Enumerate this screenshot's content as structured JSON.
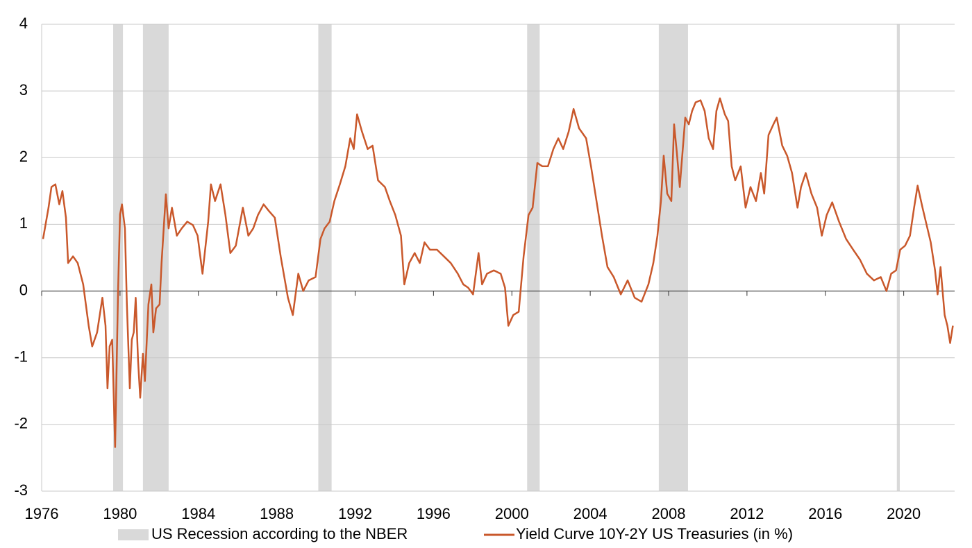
{
  "chart_data": {
    "type": "line",
    "xlim": [
      1976,
      2022.6
    ],
    "xticks": [
      1976,
      1980,
      1984,
      1988,
      1992,
      1996,
      2000,
      2004,
      2008,
      2012,
      2016,
      2020
    ],
    "ylim": [
      -3,
      4
    ],
    "yticks": [
      -3,
      -2,
      -1,
      0,
      1,
      2,
      3,
      4
    ],
    "grid": true,
    "legend": "bottom",
    "recessions": {
      "name": "US Recession according to the NBER",
      "color": "#d9d9d9",
      "spans": [
        [
          1979.65,
          1980.15
        ],
        [
          1981.17,
          1982.48
        ],
        [
          1990.12,
          1990.8
        ],
        [
          2000.78,
          2001.42
        ],
        [
          2007.5,
          2008.99
        ],
        [
          2019.65,
          2019.8
        ]
      ]
    },
    "series": [
      {
        "name": "Yield Curve 10Y-2Y US Treasuries (in %)",
        "color": "#c9582b",
        "x": [
          1976.07,
          1976.35,
          1976.5,
          1976.7,
          1976.9,
          1977.06,
          1977.24,
          1977.35,
          1977.6,
          1977.84,
          1978.12,
          1978.4,
          1978.58,
          1978.83,
          1979.1,
          1979.26,
          1979.36,
          1979.47,
          1979.6,
          1979.75,
          1979.9,
          1980.0,
          1980.1,
          1980.25,
          1980.35,
          1980.5,
          1980.6,
          1980.7,
          1980.8,
          1980.92,
          1981.03,
          1981.17,
          1981.27,
          1981.45,
          1981.6,
          1981.7,
          1981.84,
          1982.02,
          1982.12,
          1982.23,
          1982.34,
          1982.48,
          1982.65,
          1982.9,
          1983.15,
          1983.43,
          1983.72,
          1983.96,
          1984.21,
          1984.5,
          1984.64,
          1984.85,
          1985.13,
          1985.38,
          1985.63,
          1985.91,
          1986.27,
          1986.55,
          1986.8,
          1987.04,
          1987.33,
          1987.6,
          1987.9,
          1988.2,
          1988.57,
          1988.82,
          1989.1,
          1989.35,
          1989.63,
          1989.98,
          1990.23,
          1990.44,
          1990.7,
          1990.94,
          1991.22,
          1991.5,
          1991.75,
          1991.93,
          1992.1,
          1992.35,
          1992.64,
          1992.89,
          1993.17,
          1993.52,
          1993.77,
          1994.05,
          1994.34,
          1994.51,
          1994.76,
          1995.04,
          1995.3,
          1995.54,
          1995.82,
          1996.18,
          1996.53,
          1996.88,
          1997.24,
          1997.52,
          1997.77,
          1998.02,
          1998.3,
          1998.48,
          1998.73,
          1999.08,
          1999.43,
          1999.65,
          1999.82,
          2000.07,
          2000.35,
          2000.6,
          2000.85,
          2001.06,
          2001.3,
          2001.56,
          2001.84,
          2002.12,
          2002.37,
          2002.62,
          2002.9,
          2003.15,
          2003.43,
          2003.79,
          2004.04,
          2004.32,
          2004.6,
          2004.88,
          2005.2,
          2005.56,
          2005.91,
          2006.27,
          2006.62,
          2006.97,
          2007.22,
          2007.43,
          2007.61,
          2007.75,
          2007.93,
          2008.14,
          2008.28,
          2008.42,
          2008.57,
          2008.71,
          2008.85,
          2009.03,
          2009.2,
          2009.38,
          2009.63,
          2009.84,
          2010.05,
          2010.27,
          2010.44,
          2010.62,
          2010.87,
          2011.04,
          2011.22,
          2011.4,
          2011.68,
          2011.93,
          2012.18,
          2012.46,
          2012.71,
          2012.88,
          2013.1,
          2013.35,
          2013.52,
          2013.8,
          2014.05,
          2014.3,
          2014.58,
          2014.76,
          2015.0,
          2015.29,
          2015.58,
          2015.82,
          2016.07,
          2016.35,
          2016.7,
          2017.06,
          2017.42,
          2017.77,
          2018.12,
          2018.48,
          2018.83,
          2019.12,
          2019.36,
          2019.61,
          2019.82,
          2020.07,
          2020.32,
          2020.53,
          2020.71,
          2020.96,
          2021.17,
          2021.38,
          2021.6,
          2021.73,
          2021.88,
          2022.09,
          2022.23,
          2022.37,
          2022.51
        ],
        "values": [
          0.78,
          1.25,
          1.56,
          1.6,
          1.3,
          1.5,
          1.1,
          0.42,
          0.52,
          0.42,
          0.1,
          -0.52,
          -0.83,
          -0.62,
          -0.1,
          -0.52,
          -1.46,
          -0.83,
          -0.73,
          -2.34,
          0,
          1.15,
          1.3,
          0.94,
          -0.2,
          -1.46,
          -0.73,
          -0.62,
          -0.1,
          -1.04,
          -1.6,
          -0.94,
          -1.35,
          -0.2,
          0.1,
          -0.62,
          -0.26,
          -0.2,
          0.42,
          0.94,
          1.45,
          0.94,
          1.25,
          0.83,
          0.94,
          1.04,
          0.99,
          0.83,
          0.26,
          1.04,
          1.6,
          1.35,
          1.6,
          1.14,
          0.57,
          0.68,
          1.25,
          0.83,
          0.94,
          1.14,
          1.3,
          1.2,
          1.1,
          0.52,
          -0.1,
          -0.36,
          0.26,
          0,
          0.16,
          0.21,
          0.78,
          0.94,
          1.04,
          1.35,
          1.6,
          1.87,
          2.29,
          2.13,
          2.65,
          2.39,
          2.13,
          2.18,
          1.66,
          1.56,
          1.35,
          1.14,
          0.83,
          0.1,
          0.42,
          0.57,
          0.42,
          0.73,
          0.62,
          0.62,
          0.52,
          0.42,
          0.26,
          0.1,
          0.05,
          -0.05,
          0.57,
          0.1,
          0.26,
          0.31,
          0.26,
          0.05,
          -0.52,
          -0.36,
          -0.31,
          0.52,
          1.14,
          1.25,
          1.92,
          1.87,
          1.87,
          2.13,
          2.29,
          2.13,
          2.39,
          2.73,
          2.44,
          2.29,
          1.87,
          1.35,
          0.83,
          0.36,
          0.21,
          -0.05,
          0.16,
          -0.1,
          -0.16,
          0.1,
          0.42,
          0.83,
          1.35,
          2.03,
          1.46,
          1.35,
          2.5,
          2.08,
          1.56,
          2.08,
          2.6,
          2.5,
          2.7,
          2.83,
          2.86,
          2.7,
          2.29,
          2.13,
          2.7,
          2.89,
          2.65,
          2.55,
          1.87,
          1.66,
          1.87,
          1.25,
          1.56,
          1.35,
          1.77,
          1.46,
          2.34,
          2.5,
          2.6,
          2.18,
          2.03,
          1.77,
          1.25,
          1.56,
          1.77,
          1.46,
          1.25,
          0.83,
          1.14,
          1.33,
          1.04,
          0.78,
          0.62,
          0.47,
          0.26,
          0.16,
          0.21,
          0,
          0.26,
          0.31,
          0.62,
          0.68,
          0.83,
          1.25,
          1.58,
          1.25,
          0.99,
          0.73,
          0.31,
          -0.05,
          0.36,
          -0.36,
          -0.52,
          -0.78,
          -0.52
        ]
      }
    ]
  }
}
